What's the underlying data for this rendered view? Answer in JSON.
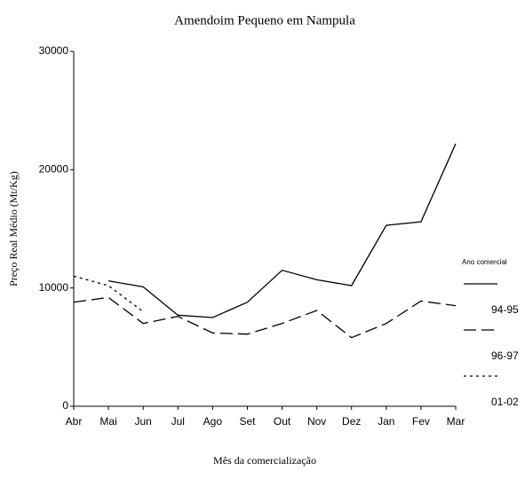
{
  "chart_data": {
    "type": "line",
    "title": "Amendoim Pequeno em Nampula",
    "x_label": "Mês da comercialização",
    "y_label": "Preço Real Médio (Mt/Kg)",
    "legend_title": "Ano comercial",
    "categories": [
      "Abr",
      "Mai",
      "Jun",
      "Jul",
      "Ago",
      "Set",
      "Out",
      "Nov",
      "Dez",
      "Jan",
      "Fev",
      "Mar"
    ],
    "series": [
      {
        "name": "94-95",
        "color": "#000000",
        "dash": "none",
        "values": [
          null,
          10600,
          10100,
          7700,
          7500,
          8800,
          11500,
          10700,
          10200,
          15300,
          15600,
          22200
        ]
      },
      {
        "name": "96-97",
        "color": "#000000",
        "dash": "14 6",
        "values": [
          8800,
          9200,
          7000,
          7600,
          6200,
          6100,
          7000,
          8100,
          5800,
          7000,
          8900,
          8500
        ]
      },
      {
        "name": "01-02",
        "color": "#000000",
        "dash": "3 4",
        "values": [
          11000,
          10200,
          8000,
          null,
          null,
          null,
          null,
          null,
          null,
          null,
          null,
          null
        ]
      }
    ],
    "ylim": [
      0,
      30000
    ],
    "yticks": [
      0,
      10000,
      20000,
      30000
    ],
    "grid": false
  }
}
